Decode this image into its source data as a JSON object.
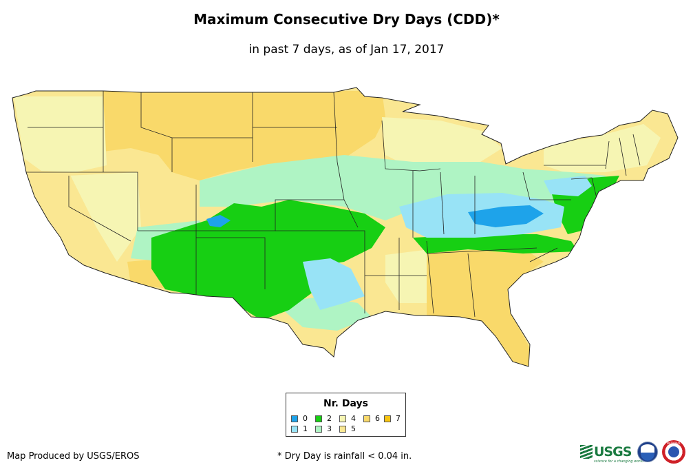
{
  "title": "Maximum Consecutive Dry Days (CDD)*",
  "subtitle": "in past 7 days, as of Jan 17, 2017",
  "legend": {
    "title": "Nr. Days",
    "items": [
      {
        "label": "0",
        "color": "#1ea3ea"
      },
      {
        "label": "1",
        "color": "#98e3f6"
      },
      {
        "label": "2",
        "color": "#17cf13"
      },
      {
        "label": "3",
        "color": "#aff4c4"
      },
      {
        "label": "4",
        "color": "#f6f5b3"
      },
      {
        "label": "5",
        "color": "#fae792"
      },
      {
        "label": "6",
        "color": "#f9d96a"
      },
      {
        "label": "7",
        "color": "#f7c411"
      }
    ]
  },
  "credit": "Map Produced by USGS/EROS",
  "footnote": "* Dry Day is rainfall < 0.04 in.",
  "logos": {
    "usgs": "USGS",
    "usgs_tagline": "science for a changing world",
    "noaa": "noaa",
    "nws": "NATIONAL WEATHER SERVICE"
  }
}
